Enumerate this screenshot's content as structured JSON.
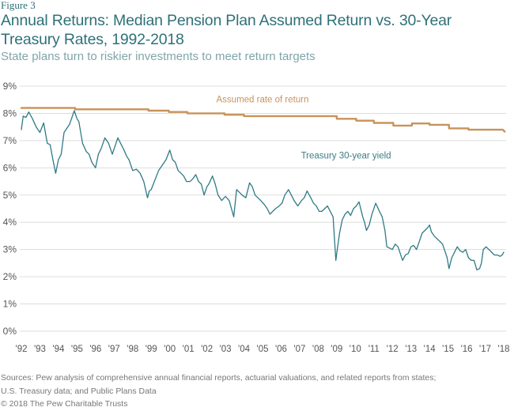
{
  "figure_label": "Figure 3",
  "title": "Annual Returns: Median Pension Plan Assumed Return vs. 30-Year Treasury Rates, 1992-2018",
  "subtitle": "State plans turn to riskier investments to meet return targets",
  "footer": {
    "sources_line1": "Sources: Pew analysis of comprehensive annual financial reports, actuarial valuations, and related reports from states;",
    "sources_line2": "U.S. Treasury data; and Public Plans Data",
    "copyright": "© 2018 The Pew Charitable Trusts"
  },
  "colors": {
    "assumed": "#c8935a",
    "treasury": "#2f7a85",
    "grid": "#dddddd",
    "title": "#2e7178"
  },
  "chart_data": {
    "type": "line",
    "title": "Annual Returns: Median Pension Plan Assumed Return vs. 30-Year Treasury Rates, 1992-2018",
    "xlabel": "",
    "ylabel": "",
    "xlim": [
      1992,
      2018
    ],
    "ylim": [
      0,
      9
    ],
    "grid": true,
    "y_ticks": [
      "0%",
      "1%",
      "2%",
      "3%",
      "4%",
      "5%",
      "6%",
      "7%",
      "8%",
      "9%"
    ],
    "y_tick_values": [
      0,
      1,
      2,
      3,
      4,
      5,
      6,
      7,
      8,
      9
    ],
    "x_ticks": [
      "'92",
      "'93",
      "'94",
      "'95",
      "'96",
      "'97",
      "'98",
      "'99",
      "'00",
      "'01",
      "'02",
      "'03",
      "'04",
      "'05",
      "'06",
      "'07",
      "'08",
      "'09",
      "'10",
      "'11",
      "'12",
      "'13",
      "'14",
      "'15",
      "'16",
      "'17",
      "'18"
    ],
    "x_tick_values": [
      1992,
      1993,
      1994,
      1995,
      1996,
      1997,
      1998,
      1999,
      2000,
      2001,
      2002,
      2003,
      2004,
      2005,
      2006,
      2007,
      2008,
      2009,
      2010,
      2011,
      2012,
      2013,
      2014,
      2015,
      2016,
      2017,
      2018
    ],
    "annotations": [
      {
        "text": "Assumed rate of return",
        "series": "assumed",
        "x": 2005.0,
        "y": 8.4
      },
      {
        "text": "Treasury 30-year yield",
        "series": "treasury",
        "x": 2009.5,
        "y": 6.35
      }
    ],
    "series": [
      {
        "name": "Assumed rate of return",
        "key": "assumed",
        "step": true,
        "points": [
          [
            1992.0,
            8.2
          ],
          [
            1994.9,
            8.2
          ],
          [
            1994.9,
            8.15
          ],
          [
            1998.85,
            8.15
          ],
          [
            1998.85,
            8.1
          ],
          [
            1999.95,
            8.1
          ],
          [
            1999.95,
            8.05
          ],
          [
            2000.95,
            8.05
          ],
          [
            2000.95,
            8.0
          ],
          [
            2002.95,
            8.0
          ],
          [
            2002.95,
            7.95
          ],
          [
            2004.0,
            7.95
          ],
          [
            2004.0,
            7.9
          ],
          [
            2009.0,
            7.9
          ],
          [
            2009.0,
            7.8
          ],
          [
            2010.05,
            7.8
          ],
          [
            2010.05,
            7.73
          ],
          [
            2011.0,
            7.73
          ],
          [
            2011.0,
            7.65
          ],
          [
            2012.05,
            7.65
          ],
          [
            2012.05,
            7.55
          ],
          [
            2013.05,
            7.55
          ],
          [
            2013.05,
            7.63
          ],
          [
            2014.0,
            7.63
          ],
          [
            2014.0,
            7.58
          ],
          [
            2015.05,
            7.58
          ],
          [
            2015.05,
            7.45
          ],
          [
            2016.1,
            7.45
          ],
          [
            2016.1,
            7.4
          ],
          [
            2017.95,
            7.4
          ],
          [
            2018.05,
            7.33
          ]
        ]
      },
      {
        "name": "Treasury 30-year yield",
        "key": "treasury",
        "step": false,
        "points": [
          [
            1992.0,
            7.4
          ],
          [
            1992.1,
            7.9
          ],
          [
            1992.25,
            7.85
          ],
          [
            1992.4,
            8.05
          ],
          [
            1992.6,
            7.8
          ],
          [
            1992.8,
            7.5
          ],
          [
            1993.0,
            7.3
          ],
          [
            1993.2,
            7.65
          ],
          [
            1993.4,
            6.9
          ],
          [
            1993.55,
            6.85
          ],
          [
            1993.7,
            6.3
          ],
          [
            1993.85,
            5.8
          ],
          [
            1994.0,
            6.3
          ],
          [
            1994.15,
            6.5
          ],
          [
            1994.3,
            7.3
          ],
          [
            1994.45,
            7.45
          ],
          [
            1994.6,
            7.6
          ],
          [
            1994.85,
            8.1
          ],
          [
            1995.0,
            7.8
          ],
          [
            1995.1,
            7.7
          ],
          [
            1995.3,
            6.9
          ],
          [
            1995.5,
            6.6
          ],
          [
            1995.65,
            6.5
          ],
          [
            1995.8,
            6.2
          ],
          [
            1996.0,
            6.0
          ],
          [
            1996.15,
            6.5
          ],
          [
            1996.3,
            6.7
          ],
          [
            1996.5,
            7.1
          ],
          [
            1996.7,
            6.9
          ],
          [
            1996.9,
            6.5
          ],
          [
            1997.05,
            6.8
          ],
          [
            1997.2,
            7.1
          ],
          [
            1997.35,
            6.9
          ],
          [
            1997.5,
            6.7
          ],
          [
            1997.7,
            6.4
          ],
          [
            1997.8,
            6.3
          ],
          [
            1998.0,
            5.9
          ],
          [
            1998.2,
            5.95
          ],
          [
            1998.4,
            5.8
          ],
          [
            1998.6,
            5.5
          ],
          [
            1998.8,
            4.9
          ],
          [
            1998.9,
            5.15
          ],
          [
            1999.0,
            5.2
          ],
          [
            1999.2,
            5.55
          ],
          [
            1999.4,
            5.9
          ],
          [
            1999.6,
            6.1
          ],
          [
            1999.8,
            6.3
          ],
          [
            2000.0,
            6.65
          ],
          [
            2000.15,
            6.3
          ],
          [
            2000.3,
            6.2
          ],
          [
            2000.45,
            5.9
          ],
          [
            2000.6,
            5.8
          ],
          [
            2000.75,
            5.7
          ],
          [
            2000.9,
            5.5
          ],
          [
            2001.1,
            5.5
          ],
          [
            2001.25,
            5.6
          ],
          [
            2001.4,
            5.75
          ],
          [
            2001.55,
            5.5
          ],
          [
            2001.7,
            5.4
          ],
          [
            2001.85,
            5.0
          ],
          [
            2002.0,
            5.3
          ],
          [
            2002.1,
            5.4
          ],
          [
            2002.3,
            5.7
          ],
          [
            2002.45,
            5.4
          ],
          [
            2002.6,
            5.0
          ],
          [
            2002.8,
            4.8
          ],
          [
            2003.0,
            4.95
          ],
          [
            2003.2,
            4.8
          ],
          [
            2003.45,
            4.2
          ],
          [
            2003.6,
            5.2
          ],
          [
            2003.75,
            5.1
          ],
          [
            2003.9,
            5.0
          ],
          [
            2004.1,
            4.9
          ],
          [
            2004.3,
            5.45
          ],
          [
            2004.45,
            5.3
          ],
          [
            2004.6,
            5.0
          ],
          [
            2004.75,
            4.9
          ],
          [
            2004.9,
            4.8
          ],
          [
            2005.1,
            4.65
          ],
          [
            2005.25,
            4.5
          ],
          [
            2005.4,
            4.3
          ],
          [
            2005.55,
            4.4
          ],
          [
            2005.7,
            4.5
          ],
          [
            2005.9,
            4.6
          ],
          [
            2006.05,
            4.7
          ],
          [
            2006.2,
            5.0
          ],
          [
            2006.4,
            5.2
          ],
          [
            2006.55,
            5.0
          ],
          [
            2006.7,
            4.8
          ],
          [
            2006.9,
            4.6
          ],
          [
            2007.1,
            4.8
          ],
          [
            2007.25,
            4.9
          ],
          [
            2007.4,
            5.15
          ],
          [
            2007.6,
            4.9
          ],
          [
            2007.75,
            4.7
          ],
          [
            2007.9,
            4.6
          ],
          [
            2008.05,
            4.4
          ],
          [
            2008.2,
            4.4
          ],
          [
            2008.35,
            4.5
          ],
          [
            2008.5,
            4.6
          ],
          [
            2008.65,
            4.4
          ],
          [
            2008.8,
            4.2
          ],
          [
            2008.95,
            2.6
          ],
          [
            2009.05,
            3.1
          ],
          [
            2009.15,
            3.6
          ],
          [
            2009.3,
            4.1
          ],
          [
            2009.45,
            4.3
          ],
          [
            2009.6,
            4.4
          ],
          [
            2009.75,
            4.25
          ],
          [
            2009.9,
            4.5
          ],
          [
            2010.05,
            4.6
          ],
          [
            2010.2,
            4.75
          ],
          [
            2010.4,
            4.2
          ],
          [
            2010.5,
            4.0
          ],
          [
            2010.6,
            3.7
          ],
          [
            2010.75,
            3.9
          ],
          [
            2010.9,
            4.3
          ],
          [
            2011.1,
            4.7
          ],
          [
            2011.2,
            4.55
          ],
          [
            2011.3,
            4.4
          ],
          [
            2011.45,
            4.2
          ],
          [
            2011.6,
            3.7
          ],
          [
            2011.7,
            3.1
          ],
          [
            2011.85,
            3.05
          ],
          [
            2012.0,
            3.0
          ],
          [
            2012.15,
            3.2
          ],
          [
            2012.3,
            3.1
          ],
          [
            2012.45,
            2.8
          ],
          [
            2012.55,
            2.6
          ],
          [
            2012.7,
            2.8
          ],
          [
            2012.85,
            2.85
          ],
          [
            2013.0,
            3.1
          ],
          [
            2013.15,
            3.15
          ],
          [
            2013.3,
            3.0
          ],
          [
            2013.45,
            3.3
          ],
          [
            2013.6,
            3.6
          ],
          [
            2013.75,
            3.7
          ],
          [
            2013.9,
            3.8
          ],
          [
            2014.0,
            3.9
          ],
          [
            2014.1,
            3.65
          ],
          [
            2014.25,
            3.5
          ],
          [
            2014.4,
            3.4
          ],
          [
            2014.55,
            3.3
          ],
          [
            2014.7,
            3.2
          ],
          [
            2014.85,
            2.9
          ],
          [
            2014.95,
            2.7
          ],
          [
            2015.05,
            2.3
          ],
          [
            2015.2,
            2.7
          ],
          [
            2015.35,
            2.9
          ],
          [
            2015.5,
            3.1
          ],
          [
            2015.65,
            2.95
          ],
          [
            2015.8,
            2.9
          ],
          [
            2015.95,
            3.0
          ],
          [
            2016.1,
            2.7
          ],
          [
            2016.25,
            2.6
          ],
          [
            2016.4,
            2.6
          ],
          [
            2016.55,
            2.25
          ],
          [
            2016.7,
            2.3
          ],
          [
            2016.8,
            2.5
          ],
          [
            2016.9,
            3.0
          ],
          [
            2017.05,
            3.1
          ],
          [
            2017.2,
            3.0
          ],
          [
            2017.35,
            2.9
          ],
          [
            2017.5,
            2.8
          ],
          [
            2017.65,
            2.8
          ],
          [
            2017.8,
            2.75
          ],
          [
            2017.92,
            2.8
          ],
          [
            2018.0,
            2.9
          ]
        ]
      }
    ]
  }
}
